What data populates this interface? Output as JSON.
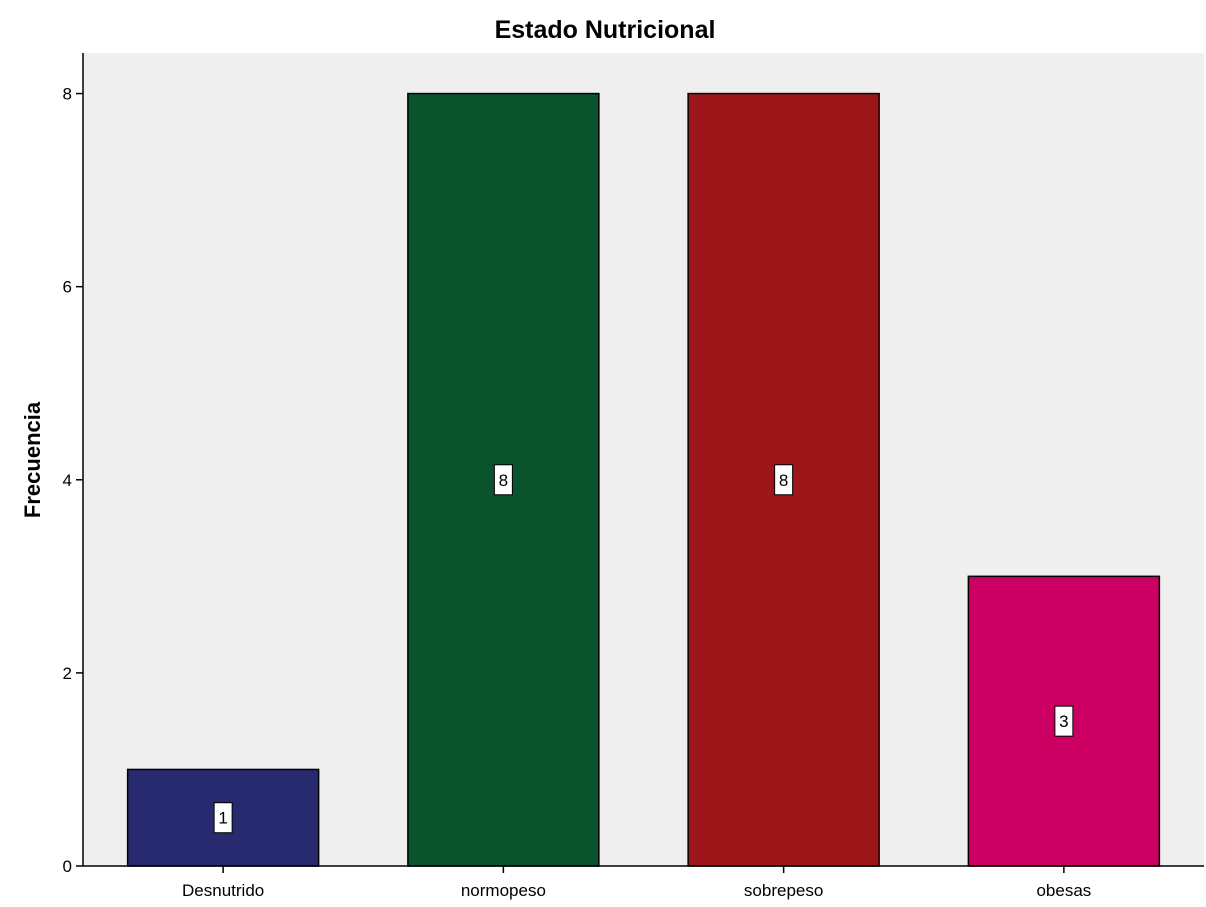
{
  "chart_data": {
    "type": "bar",
    "title": "Estado Nutricional",
    "xlabel": "",
    "ylabel": "Frecuencia",
    "categories": [
      "Desnutrido",
      "normopeso",
      "sobrepeso",
      "obesas"
    ],
    "values": [
      1,
      8,
      8,
      3
    ],
    "data_labels": [
      "1",
      "8",
      "8",
      "3"
    ],
    "colors": [
      "#282a70",
      "#0b532c",
      "#9c161a",
      "#cc0062"
    ],
    "yticks": [
      "0",
      "2",
      "4",
      "6",
      "8"
    ],
    "ylim": [
      0,
      8.42
    ],
    "grid": false,
    "legend": "none",
    "plot_background": "#efefef"
  }
}
